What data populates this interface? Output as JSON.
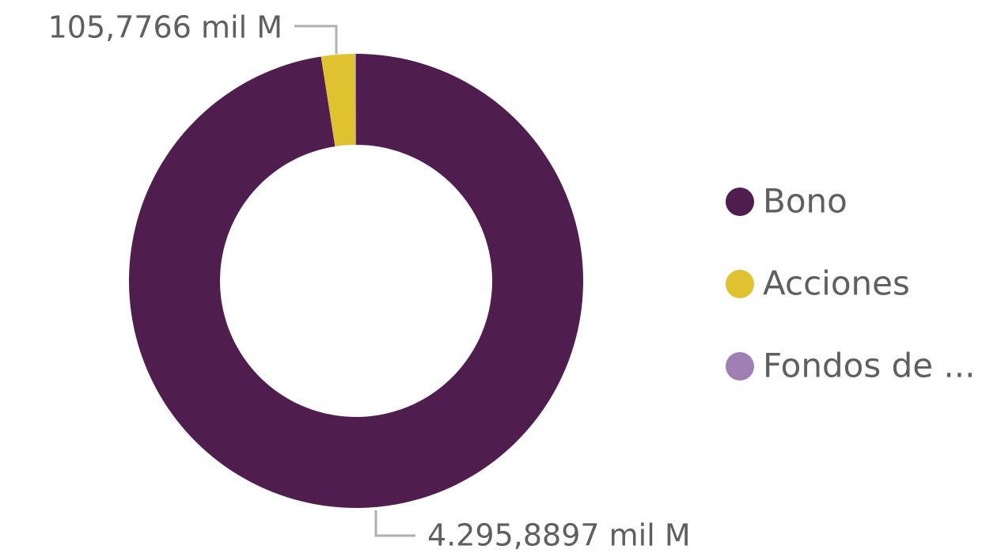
{
  "chart_data": {
    "type": "donut",
    "categories": [
      "Bono",
      "Acciones",
      "Fondos de ..."
    ],
    "values": [
      4295.8897,
      105.7766,
      3
    ],
    "value_labels": [
      "4.295,8897 mil M",
      "105,7766 mil M",
      null
    ],
    "colors": [
      "#4f1e4f",
      "#e0c230",
      "#a080b4"
    ],
    "legend": "right"
  }
}
